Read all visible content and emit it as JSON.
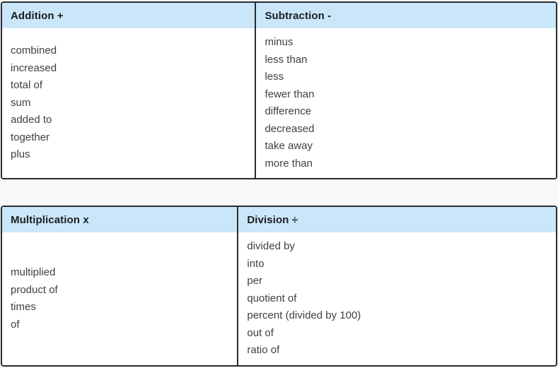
{
  "colors": {
    "header_bg": "#c9e7f8",
    "border": "#2a2b30",
    "header_text": "#1b1d20",
    "body_text": "#3f4043",
    "page_bg": "#f7f8f8",
    "cell_bg": "#ffffff"
  },
  "tables": [
    {
      "columns": [
        {
          "header": "Addition +",
          "terms": [
            "combined",
            "increased",
            "total of",
            "sum",
            "added to",
            "together",
            "plus"
          ]
        },
        {
          "header": "Subtraction -",
          "terms": [
            "minus",
            "less than",
            "less",
            "fewer than",
            "difference",
            "decreased",
            "take away",
            "more than"
          ]
        }
      ]
    },
    {
      "columns": [
        {
          "header": "Multiplication x",
          "terms": [
            "multiplied",
            "product of",
            "times",
            "of"
          ]
        },
        {
          "header": "Division ÷",
          "terms": [
            "divided by",
            "into",
            "per",
            "quotient of",
            "percent (divided by 100)",
            "out of",
            "ratio of"
          ]
        }
      ]
    }
  ]
}
